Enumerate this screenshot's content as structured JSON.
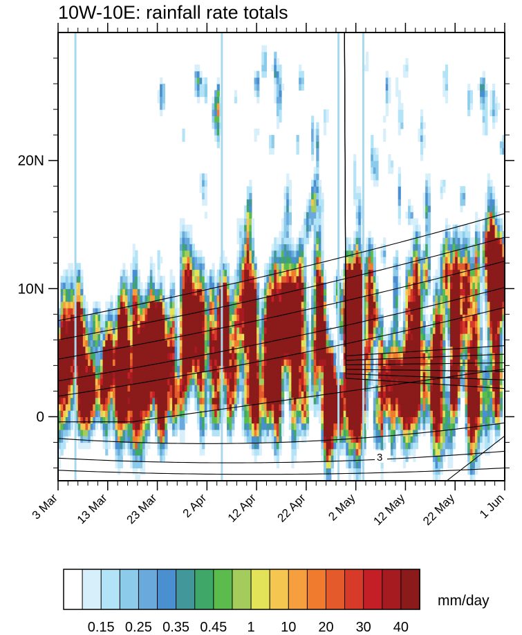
{
  "chart_data": {
    "type": "heatmap",
    "title": "10W-10E: rainfall rate totals",
    "x_axis": {
      "ticks": [
        {
          "day": 0,
          "label": "3 Mar"
        },
        {
          "day": 10,
          "label": "13 Mar"
        },
        {
          "day": 20,
          "label": "23 Mar"
        },
        {
          "day": 30,
          "label": "2 Apr"
        },
        {
          "day": 40,
          "label": "12 Apr"
        },
        {
          "day": 50,
          "label": "22 Apr"
        },
        {
          "day": 60,
          "label": "2 May"
        },
        {
          "day": 70,
          "label": "12 May"
        },
        {
          "day": 80,
          "label": "22 May"
        },
        {
          "day": 90,
          "label": "1 Jun"
        }
      ],
      "range_days": [
        0,
        90
      ]
    },
    "y_axis": {
      "ticks": [
        {
          "lat": 0,
          "label": "0"
        },
        {
          "lat": 10,
          "label": "10N"
        },
        {
          "lat": 20,
          "label": "20N"
        }
      ],
      "range": [
        -5,
        30
      ]
    },
    "colorbar": {
      "colors": [
        "#ffffff",
        "#d7effa",
        "#b2e3f7",
        "#8dcbeb",
        "#6aa9dc",
        "#4a8fd0",
        "#42979a",
        "#3fa768",
        "#5bbb4d",
        "#a3cc5c",
        "#e3e35a",
        "#f6c750",
        "#f59f3e",
        "#f07a2e",
        "#e55a2b",
        "#d83a2a",
        "#c41f27",
        "#a51b20",
        "#8b1a1a"
      ],
      "labels": [
        "0.15",
        "0.25",
        "0.35",
        "0.45",
        "1",
        "10",
        "20",
        "30",
        "40"
      ],
      "units": "mm/day"
    },
    "contour_label": "3"
  }
}
